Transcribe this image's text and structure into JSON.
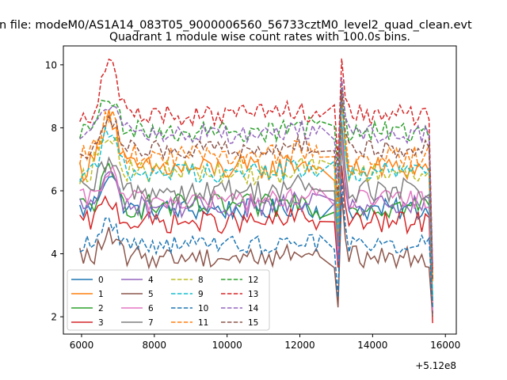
{
  "figure": {
    "suptitle": "n file: modeM0/AS1A14_083T05_9000006560_56733cztM0_level2_quad_clean.evt"
  },
  "chart_data": {
    "type": "line",
    "title": "Quadrant 1 module wise count rates with 100.0s bins.",
    "xlabel": "",
    "ylabel": "",
    "x_offset_label": "+5.12e8",
    "xlim": [
      5500,
      16300
    ],
    "ylim": [
      1.45,
      10.6
    ],
    "xticks": [
      6000,
      8000,
      10000,
      12000,
      14000,
      16000
    ],
    "yticks": [
      2,
      4,
      6,
      8,
      10
    ],
    "grid": false,
    "legend_position": "lower-left",
    "legend_columns": 4,
    "x_start": 5950,
    "x_end": 15650,
    "x_step": 100,
    "gap_start": 12600,
    "gap_end": 12900,
    "series": [
      {
        "name": "0",
        "color": "#1f77b4",
        "dash": "solid",
        "base": 5.4,
        "noise": 0.35,
        "bump": 1.2,
        "spike": 2.2,
        "end": 2.1
      },
      {
        "name": "1",
        "color": "#ff7f0e",
        "dash": "solid",
        "base": 6.7,
        "noise": 0.4,
        "bump": 1.8,
        "spike": 2.4,
        "end": 2.4
      },
      {
        "name": "2",
        "color": "#2ca02c",
        "dash": "solid",
        "base": 5.5,
        "noise": 0.4,
        "bump": 1.0,
        "spike": 2.0,
        "end": 2.3
      },
      {
        "name": "3",
        "color": "#d62728",
        "dash": "solid",
        "base": 5.0,
        "noise": 0.35,
        "bump": 0.7,
        "spike": 1.8,
        "end": 1.8
      },
      {
        "name": "4",
        "color": "#9467bd",
        "dash": "solid",
        "base": 5.5,
        "noise": 0.35,
        "bump": 1.0,
        "spike": 2.2,
        "end": 2.1
      },
      {
        "name": "5",
        "color": "#8c564b",
        "dash": "solid",
        "base": 3.9,
        "noise": 0.35,
        "bump": 0.6,
        "spike": 2.0,
        "end": 2.0
      },
      {
        "name": "6",
        "color": "#e377c2",
        "dash": "solid",
        "base": 5.7,
        "noise": 0.35,
        "bump": 0.9,
        "spike": 2.0,
        "end": 2.2
      },
      {
        "name": "7",
        "color": "#7f7f7f",
        "dash": "solid",
        "base": 6.0,
        "noise": 0.4,
        "bump": 0.9,
        "spike": 2.2,
        "end": 2.5
      },
      {
        "name": "8",
        "color": "#bcbd22",
        "dash": "dashed",
        "base": 6.6,
        "noise": 0.4,
        "bump": 1.4,
        "spike": 2.4,
        "end": 2.7
      },
      {
        "name": "9",
        "color": "#17becf",
        "dash": "dashed",
        "base": 6.6,
        "noise": 0.35,
        "bump": 1.2,
        "spike": 2.3,
        "end": 2.6
      },
      {
        "name": "10",
        "color": "#1f77b4",
        "dash": "dashed",
        "base": 4.3,
        "noise": 0.3,
        "bump": 0.7,
        "spike": 2.1,
        "end": 2.3
      },
      {
        "name": "11",
        "color": "#ff7f0e",
        "dash": "dashed",
        "base": 7.1,
        "noise": 0.35,
        "bump": 1.4,
        "spike": 2.1,
        "end": 3.1
      },
      {
        "name": "12",
        "color": "#2ca02c",
        "dash": "dashed",
        "base": 7.9,
        "noise": 0.35,
        "bump": 1.0,
        "spike": 1.6,
        "end": 3.2
      },
      {
        "name": "13",
        "color": "#d62728",
        "dash": "dashed",
        "base": 8.4,
        "noise": 0.35,
        "bump": 1.6,
        "spike": 1.8,
        "end": 3.5
      },
      {
        "name": "14",
        "color": "#9467bd",
        "dash": "dashed",
        "base": 7.8,
        "noise": 0.3,
        "bump": 1.0,
        "spike": 1.8,
        "end": 3.6
      },
      {
        "name": "15",
        "color": "#8c564b",
        "dash": "dashed",
        "base": 7.3,
        "noise": 0.3,
        "bump": 1.1,
        "spike": 1.9,
        "end": 3.2
      }
    ]
  }
}
